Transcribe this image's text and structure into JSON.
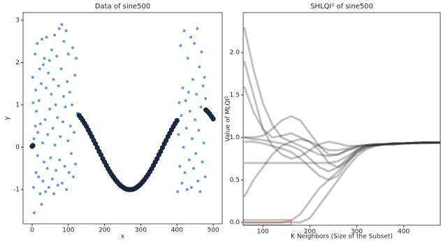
{
  "chart_data": [
    {
      "type": "scatter",
      "title": "Data of sine500",
      "x_label": "x",
      "y_label": "y",
      "xlim": [
        -25,
        525
      ],
      "ylim": [
        -1.81,
        3.18
      ],
      "xticks": [
        0,
        100,
        200,
        300,
        400,
        500
      ],
      "yticks": [
        -1,
        0,
        1,
        2,
        3
      ],
      "series": [
        {
          "color": "#6495ed",
          "x": [
            2,
            3,
            4,
            5,
            6,
            8,
            9,
            10,
            11,
            12,
            14,
            15,
            16,
            18,
            19,
            21,
            22,
            23,
            25,
            26,
            27,
            29,
            30,
            31,
            33,
            34,
            36,
            37,
            39,
            40,
            42,
            43,
            45,
            46,
            48,
            49,
            51,
            53,
            54,
            56,
            57,
            59,
            60,
            62,
            63,
            65,
            66,
            68,
            70,
            71,
            73,
            75,
            76,
            78,
            80,
            82,
            83,
            85,
            87,
            88,
            90,
            92,
            94,
            95,
            97,
            99,
            100,
            102,
            104,
            106,
            108,
            110,
            112,
            114,
            116,
            118,
            120,
            122,
            125,
            402,
            404,
            406,
            408,
            410,
            412,
            414,
            416,
            418,
            420,
            422,
            424,
            426,
            428,
            430,
            432,
            434,
            436,
            438,
            440,
            442,
            444,
            446,
            448,
            450,
            452,
            454,
            456,
            458,
            460,
            462,
            464,
            466,
            468,
            470,
            472,
            474,
            476,
            478,
            479
          ],
          "values": [
            1.65,
            1.05,
            -0.95,
            0.2,
            -1.55,
            2.2,
            0.5,
            1.35,
            -0.6,
            0.85,
            2.45,
            -0.2,
            0.35,
            -0.7,
            1.1,
            1.85,
            -1.1,
            0.55,
            1.5,
            -1.35,
            2.55,
            0.1,
            -0.8,
            1.95,
            -0.35,
            2.1,
            0.65,
            -1.05,
            1.4,
            2.6,
            -0.5,
            0.3,
            1.75,
            -0.95,
            2.05,
            0.9,
            -0.25,
            1.25,
            2.3,
            -0.75,
            0.45,
            1.6,
            -1.1,
            2.65,
            0.05,
            1.0,
            -0.55,
            2.15,
            0.7,
            -0.9,
            1.45,
            2.8,
            -0.3,
            0.25,
            1.85,
            2.9,
            -0.85,
            0.6,
            1.2,
            2.5,
            -0.45,
            0.95,
            2.75,
            -1.0,
            1.55,
            0.15,
            2.2,
            -0.6,
            1.3,
            0.5,
            -0.15,
            1.0,
            2.35,
            -0.7,
            0.35,
            1.7,
            -0.4,
            2.1,
            0.8,
            -1.05,
            0.3,
            1.05,
            -0.45,
            2.4,
            0.75,
            -0.85,
            1.4,
            0.0,
            2.75,
            -0.6,
            1.1,
            0.45,
            -1.0,
            2.1,
            1.3,
            -0.3,
            0.85,
            2.6,
            -0.95,
            0.2,
            1.6,
            -0.5,
            2.45,
            0.65,
            -0.15,
            1.25,
            2.8,
            -0.8,
            0.4,
            1.9,
            -1.05,
            0.95,
            2.25,
            -0.35,
            1.45,
            0.1,
            1.65,
            -0.7,
            1.15
          ]
        },
        {
          "color": "#1c2b45",
          "x": [
            0,
            2,
            130,
            135,
            140,
            145,
            150,
            155,
            160,
            165,
            170,
            175,
            180,
            185,
            190,
            195,
            200,
            205,
            210,
            215,
            220,
            225,
            230,
            235,
            240,
            245,
            250,
            255,
            260,
            265,
            270,
            275,
            280,
            285,
            290,
            295,
            300,
            305,
            310,
            315,
            320,
            325,
            330,
            335,
            340,
            345,
            350,
            355,
            360,
            365,
            370,
            375,
            380,
            385,
            390,
            395,
            400,
            480,
            485,
            490,
            495,
            500
          ],
          "values": [
            0.02,
            0.04,
            0.75,
            0.69,
            0.63,
            0.56,
            0.49,
            0.41,
            0.33,
            0.25,
            0.16,
            0.08,
            -0.01,
            -0.1,
            -0.18,
            -0.27,
            -0.35,
            -0.43,
            -0.51,
            -0.58,
            -0.65,
            -0.71,
            -0.77,
            -0.82,
            -0.87,
            -0.91,
            -0.94,
            -0.97,
            -0.99,
            -1.0,
            -1.0,
            -1.0,
            -0.99,
            -0.97,
            -0.94,
            -0.91,
            -0.87,
            -0.82,
            -0.77,
            -0.71,
            -0.65,
            -0.58,
            -0.51,
            -0.43,
            -0.35,
            -0.27,
            -0.18,
            -0.1,
            -0.01,
            0.08,
            0.16,
            0.25,
            0.33,
            0.41,
            0.49,
            0.56,
            0.63,
            0.88,
            0.84,
            0.79,
            0.73,
            0.67
          ]
        }
      ]
    },
    {
      "type": "line",
      "title": "SHLQI² of sine500",
      "x_label": "K Neighbors (Size of the Subset)",
      "y_label": "Value of MLQI²",
      "xlim": [
        58,
        478
      ],
      "ylim": [
        -0.033,
        2.47
      ],
      "xticks": [
        100,
        200,
        300,
        400
      ],
      "yticks": [
        {
          "value": 0,
          "label": "0.0"
        },
        {
          "value": 0.5,
          "label": "0.5"
        },
        {
          "value": 1,
          "label": "1.0"
        },
        1.5,
        {
          "value": 2,
          "label": "2.0"
        }
      ],
      "opacity": 0.3,
      "highlight": {
        "x": [
          58,
          160
        ],
        "y": [
          -0.03,
          0.03
        ],
        "color": "#d9534f"
      },
      "x": [
        60,
        80,
        100,
        120,
        140,
        160,
        180,
        200,
        220,
        240,
        260,
        280,
        300,
        320,
        340,
        360,
        380,
        400,
        440,
        478
      ],
      "series": [
        {
          "color": "#333333",
          "values": [
            2.3,
            1.8,
            1.4,
            1.15,
            1.0,
            0.95,
            0.9,
            0.85,
            0.8,
            0.78,
            0.8,
            0.85,
            0.88,
            0.9,
            0.91,
            0.92,
            0.92,
            0.93,
            0.93,
            0.94
          ]
        },
        {
          "color": "#333333",
          "values": [
            1.6,
            1.3,
            1.1,
            1.0,
            1.02,
            1.05,
            1.0,
            0.95,
            0.9,
            0.85,
            0.85,
            0.87,
            0.9,
            0.91,
            0.92,
            0.92,
            0.93,
            0.93,
            0.94,
            0.94
          ]
        },
        {
          "color": "#333333",
          "values": [
            1.0,
            1.0,
            1.02,
            1.1,
            1.2,
            1.25,
            1.2,
            1.05,
            0.9,
            0.8,
            0.8,
            0.85,
            0.89,
            0.91,
            0.92,
            0.92,
            0.93,
            0.93,
            0.94,
            0.94
          ]
        },
        {
          "color": "#333333",
          "values": [
            1.0,
            0.98,
            0.97,
            0.95,
            0.93,
            0.9,
            0.85,
            0.75,
            0.65,
            0.6,
            0.65,
            0.75,
            0.85,
            0.9,
            0.91,
            0.92,
            0.93,
            0.93,
            0.94,
            0.94
          ]
        },
        {
          "color": "#333333",
          "values": [
            0.95,
            0.95,
            0.93,
            0.9,
            0.87,
            0.83,
            0.75,
            0.65,
            0.55,
            0.5,
            0.55,
            0.7,
            0.82,
            0.88,
            0.91,
            0.92,
            0.92,
            0.93,
            0.94,
            0.94
          ]
        },
        {
          "color": "#333333",
          "values": [
            0.7,
            0.7,
            0.7,
            0.7,
            0.7,
            0.7,
            0.7,
            0.7,
            0.7,
            0.7,
            0.72,
            0.78,
            0.85,
            0.9,
            0.91,
            0.92,
            0.93,
            0.93,
            0.94,
            0.94
          ]
        },
        {
          "color": "#333333",
          "values": [
            0.0,
            0.0,
            0.0,
            0.0,
            0.0,
            0.02,
            0.1,
            0.25,
            0.4,
            0.5,
            0.6,
            0.72,
            0.82,
            0.88,
            0.91,
            0.92,
            0.92,
            0.93,
            0.94,
            0.94
          ]
        },
        {
          "color": "#333333",
          "values": [
            0.0,
            0.0,
            0.0,
            0.0,
            0.0,
            0.0,
            0.0,
            0.05,
            0.2,
            0.35,
            0.5,
            0.65,
            0.78,
            0.86,
            0.9,
            0.92,
            0.92,
            0.93,
            0.94,
            0.94
          ]
        },
        {
          "color": "#333333",
          "values": [
            1.9,
            1.5,
            1.1,
            0.9,
            0.8,
            0.75,
            0.78,
            0.85,
            0.92,
            0.95,
            0.93,
            0.9,
            0.9,
            0.91,
            0.92,
            0.92,
            0.93,
            0.93,
            0.94,
            0.94
          ]
        },
        {
          "color": "#333333",
          "values": [
            0.3,
            0.5,
            0.65,
            0.8,
            0.9,
            0.95,
            0.98,
            0.95,
            0.85,
            0.7,
            0.65,
            0.72,
            0.84,
            0.9,
            0.91,
            0.92,
            0.93,
            0.93,
            0.94,
            0.94
          ]
        }
      ]
    }
  ]
}
